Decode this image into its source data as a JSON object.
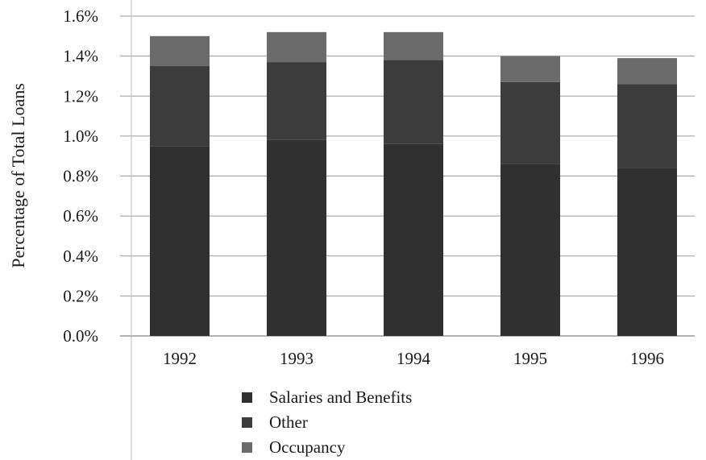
{
  "chart_data": {
    "type": "bar",
    "stacked": true,
    "categories": [
      "1992",
      "1993",
      "1994",
      "1995",
      "1996"
    ],
    "series": [
      {
        "name": "Salaries and Benefits",
        "values": [
          0.95,
          0.98,
          0.96,
          0.86,
          0.84
        ]
      },
      {
        "name": "Other",
        "values": [
          0.4,
          0.39,
          0.42,
          0.41,
          0.42
        ]
      },
      {
        "name": "Occupancy",
        "values": [
          0.15,
          0.15,
          0.14,
          0.13,
          0.13
        ]
      }
    ],
    "ylabel": "Percentage of Total Loans",
    "xlabel": "",
    "ylim": [
      0,
      1.6
    ],
    "yticks": [
      "0.0%",
      "0.2%",
      "0.4%",
      "0.6%",
      "0.8%",
      "1.0%",
      "1.2%",
      "1.4%",
      "1.6%"
    ],
    "grid": true,
    "legend_position": "bottom",
    "colors": {
      "Salaries and Benefits": "#303030",
      "Other": "#3c3c3c",
      "Occupancy": "#6b6b6b",
      "gridline": "#9a9a9a"
    }
  }
}
